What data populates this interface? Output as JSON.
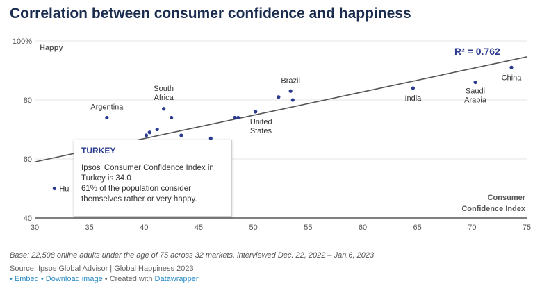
{
  "chart_data": {
    "type": "scatter",
    "title": "Correlation between consumer confidence and happiness",
    "xlabel": [
      "Consumer",
      "Confidence Index"
    ],
    "ylabel": "Happy",
    "xlim": [
      30,
      75
    ],
    "ylim": [
      40,
      100
    ],
    "xticks": [
      30,
      35,
      40,
      45,
      50,
      55,
      60,
      65,
      70,
      75
    ],
    "yticks": [
      40,
      60,
      80,
      100
    ],
    "ytick_labels": [
      "40",
      "60",
      "80",
      "100%"
    ],
    "grid": "horizontal",
    "point_color": "#2b3b8f",
    "trend_color": "#555555",
    "points": [
      {
        "x": 36.6,
        "y": 74,
        "label": [
          "Argentina"
        ]
      },
      {
        "x": 41.8,
        "y": 77,
        "label": [
          "South",
          "Africa"
        ]
      },
      {
        "x": 42.5,
        "y": 74,
        "label": []
      },
      {
        "x": 40.2,
        "y": 68,
        "label": []
      },
      {
        "x": 40.5,
        "y": 69,
        "label": []
      },
      {
        "x": 41.2,
        "y": 70,
        "label": []
      },
      {
        "x": 43.4,
        "y": 68,
        "label": []
      },
      {
        "x": 46.1,
        "y": 67,
        "label": []
      },
      {
        "x": 34.0,
        "y": 61,
        "label": []
      },
      {
        "x": 31.8,
        "y": 50,
        "label": [
          "Hu"
        ]
      },
      {
        "x": 48.3,
        "y": 74,
        "label": []
      },
      {
        "x": 48.6,
        "y": 74,
        "label": []
      },
      {
        "x": 50.2,
        "y": 76,
        "label": [
          "United",
          "States"
        ]
      },
      {
        "x": 52.3,
        "y": 81,
        "label": []
      },
      {
        "x": 53.4,
        "y": 83,
        "label": [
          "Brazil"
        ]
      },
      {
        "x": 53.6,
        "y": 80,
        "label": []
      },
      {
        "x": 64.6,
        "y": 84,
        "label": [
          "India"
        ]
      },
      {
        "x": 70.3,
        "y": 86,
        "label": [
          "Saudi",
          "Arabia"
        ]
      },
      {
        "x": 73.6,
        "y": 91,
        "label": [
          "China"
        ]
      }
    ],
    "trendline": {
      "x": [
        30,
        75
      ],
      "y": [
        59,
        94.6
      ]
    },
    "r2_label": "R² = 0.762",
    "tooltip": {
      "title": "TURKEY",
      "lines": [
        "Ipsos' Consumer Confidence Index in",
        "Turkey is 34.0",
        "61% of the population consider",
        "themselves rather or very happy."
      ]
    }
  },
  "notes": {
    "base": "Base: 22,508 online adults under the age of 75 across 32 markets, interviewed Dec. 22, 2022 – Jan.6, 2023",
    "source": "Source: Ipsos Global Advisor | Global Happiness 2023",
    "embed": "Embed",
    "download": "Download image",
    "created": "Created with",
    "datawrapper": "Datawrapper"
  }
}
